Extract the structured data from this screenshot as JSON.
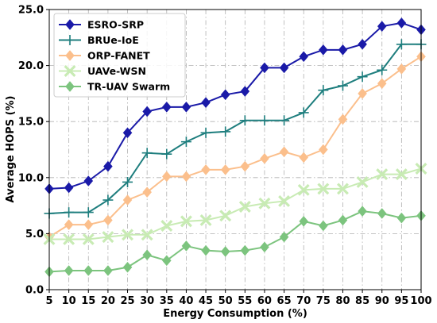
{
  "chart_data": {
    "type": "line",
    "xlabel": "Energy Consumption (%)",
    "ylabel": "Average HOPS (%)",
    "x": [
      5,
      10,
      15,
      20,
      25,
      30,
      35,
      40,
      45,
      50,
      55,
      60,
      65,
      70,
      75,
      80,
      85,
      90,
      95,
      100
    ],
    "xlim": [
      5,
      100
    ],
    "ylim": [
      0,
      25
    ],
    "yticks": [
      0.0,
      5.0,
      10.0,
      15.0,
      20.0,
      25.0
    ],
    "ytick_labels": [
      "0.0",
      "5.0",
      "10.0",
      "15.0",
      "20.0",
      "25.0"
    ],
    "grid": true,
    "legend_position": "top-left",
    "series": [
      {
        "name": "ESRO-SRP",
        "color": "#1a1aa8",
        "marker": "diamond",
        "values": [
          9.0,
          9.1,
          9.7,
          11.0,
          14.0,
          15.9,
          16.3,
          16.3,
          16.7,
          17.4,
          17.7,
          19.8,
          19.8,
          20.8,
          21.4,
          21.4,
          21.9,
          23.5,
          23.8,
          23.2
        ]
      },
      {
        "name": "BRUe-IoE",
        "color": "#1e7e7e",
        "marker": "plus",
        "values": [
          6.8,
          6.9,
          6.9,
          8.0,
          9.6,
          12.2,
          12.1,
          13.2,
          14.0,
          14.1,
          15.1,
          15.1,
          15.1,
          15.8,
          17.8,
          18.2,
          19.0,
          19.6,
          21.9,
          21.9
        ]
      },
      {
        "name": "ORP-FANET",
        "color": "#fbbf8c",
        "marker": "diamond",
        "values": [
          4.7,
          5.8,
          5.8,
          6.2,
          8.0,
          8.7,
          10.1,
          10.1,
          10.7,
          10.7,
          11.0,
          11.7,
          12.3,
          11.8,
          12.5,
          15.2,
          17.5,
          18.4,
          19.7,
          20.8
        ]
      },
      {
        "name": "UAVe-WSN",
        "color": "#c8ebb4",
        "marker": "x",
        "values": [
          4.5,
          4.5,
          4.5,
          4.7,
          4.9,
          4.9,
          5.7,
          6.1,
          6.2,
          6.6,
          7.4,
          7.7,
          7.9,
          8.9,
          9.0,
          9.0,
          9.6,
          10.3,
          10.3,
          10.8
        ]
      },
      {
        "name": "TR-UAV Swarm",
        "color": "#7cc47e",
        "marker": "diamond",
        "values": [
          1.6,
          1.7,
          1.7,
          1.7,
          2.0,
          3.1,
          2.6,
          3.9,
          3.5,
          3.4,
          3.5,
          3.8,
          4.7,
          6.1,
          5.7,
          6.2,
          7.0,
          6.8,
          6.4,
          6.6
        ]
      }
    ]
  }
}
